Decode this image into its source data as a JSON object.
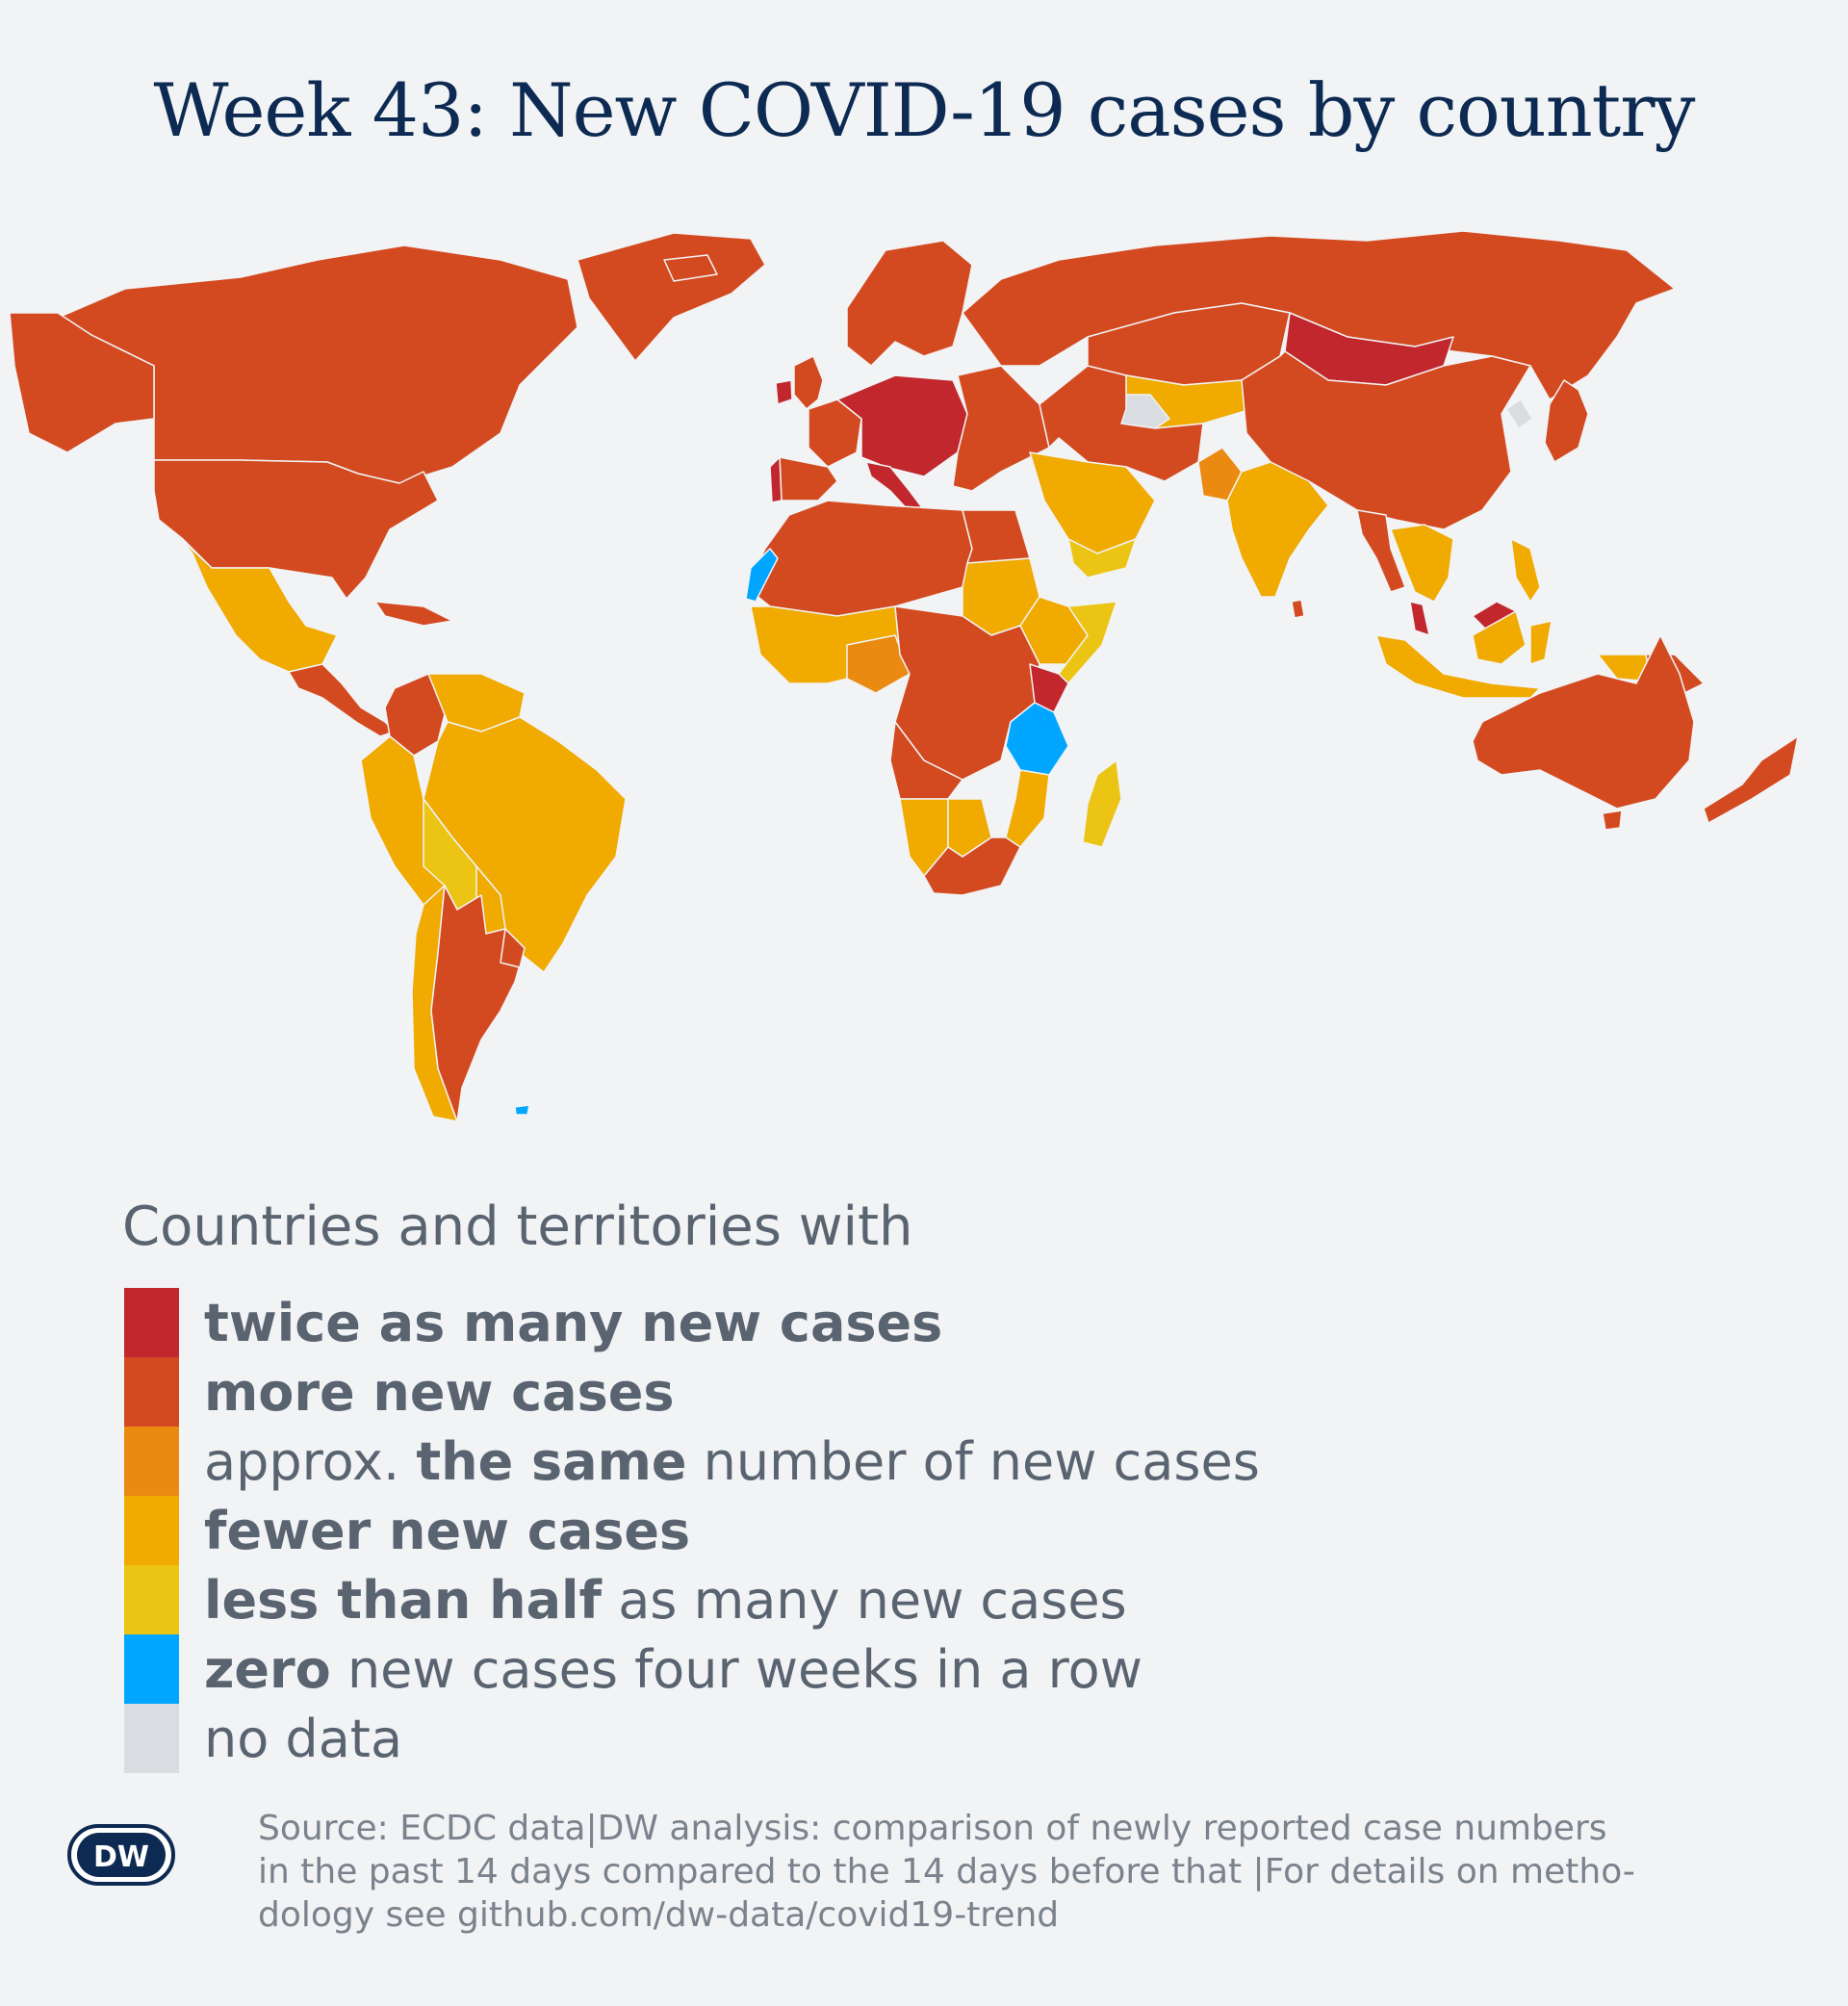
{
  "title": "Week 43: New COVID-19 cases by country",
  "legend": {
    "heading": "Countries and territories with",
    "items": [
      {
        "key": "twice",
        "color": "#c1272d",
        "bold": "twice as many new cases",
        "rest": ""
      },
      {
        "key": "more",
        "color": "#d44a20",
        "bold": "more new cases",
        "rest": ""
      },
      {
        "key": "same",
        "color": "#eb8a10",
        "pre": "approx. ",
        "bold": "the same",
        "rest": " number of new cases"
      },
      {
        "key": "fewer",
        "color": "#f0aa00",
        "bold": "fewer new cases",
        "rest": ""
      },
      {
        "key": "half",
        "color": "#ecc414",
        "bold": "less than half",
        "rest": " as many new cases"
      },
      {
        "key": "zero",
        "color": "#00a6ff",
        "bold": "zero",
        "rest": " new cases four weeks in a row"
      },
      {
        "key": "nodata",
        "color": "#d9dde1",
        "bold": "",
        "rest": "no data"
      }
    ]
  },
  "logo": {
    "text": "DW"
  },
  "source": {
    "line1": "Source: ECDC data|DW analysis: comparison of newly reported case numbers",
    "line2": "in the past 14 days compared to the 14 days before that |For details on metho-",
    "line3": "dology see github.com/dw-data/covid19-trend"
  },
  "map_regions": [
    {
      "name": "Canada",
      "category": "more"
    },
    {
      "name": "United States",
      "category": "more"
    },
    {
      "name": "Greenland",
      "category": "more"
    },
    {
      "name": "Mexico",
      "category": "fewer"
    },
    {
      "name": "Central America",
      "category": "more"
    },
    {
      "name": "Caribbean",
      "category": "more"
    },
    {
      "name": "Colombia",
      "category": "more"
    },
    {
      "name": "Venezuela",
      "category": "fewer"
    },
    {
      "name": "Ecuador",
      "category": "fewer"
    },
    {
      "name": "Peru",
      "category": "fewer"
    },
    {
      "name": "Brazil",
      "category": "fewer"
    },
    {
      "name": "Bolivia",
      "category": "half"
    },
    {
      "name": "Paraguay",
      "category": "fewer"
    },
    {
      "name": "Chile",
      "category": "fewer"
    },
    {
      "name": "Argentina",
      "category": "more"
    },
    {
      "name": "Uruguay",
      "category": "more"
    },
    {
      "name": "Falkland Islands",
      "category": "zero"
    },
    {
      "name": "Iceland",
      "category": "more"
    },
    {
      "name": "Scandinavia",
      "category": "more"
    },
    {
      "name": "United Kingdom",
      "category": "more"
    },
    {
      "name": "Ireland",
      "category": "twice"
    },
    {
      "name": "Spain",
      "category": "more"
    },
    {
      "name": "Portugal",
      "category": "twice"
    },
    {
      "name": "France",
      "category": "more"
    },
    {
      "name": "Central Europe",
      "category": "twice"
    },
    {
      "name": "Italy",
      "category": "twice"
    },
    {
      "name": "Eastern Europe",
      "category": "more"
    },
    {
      "name": "Russia",
      "category": "more"
    },
    {
      "name": "Kazakhstan",
      "category": "more"
    },
    {
      "name": "Central Asia",
      "category": "fewer"
    },
    {
      "name": "Turkmenistan",
      "category": "nodata"
    },
    {
      "name": "Mongolia",
      "category": "twice"
    },
    {
      "name": "China",
      "category": "more"
    },
    {
      "name": "North Korea",
      "category": "nodata"
    },
    {
      "name": "Japan",
      "category": "more"
    },
    {
      "name": "Iran",
      "category": "more"
    },
    {
      "name": "Saudi Arabia",
      "category": "fewer"
    },
    {
      "name": "Yemen",
      "category": "half"
    },
    {
      "name": "Pakistan",
      "category": "same"
    },
    {
      "name": "India",
      "category": "fewer"
    },
    {
      "name": "Myanmar",
      "category": "more"
    },
    {
      "name": "Southeast Asia",
      "category": "fewer"
    },
    {
      "name": "Malaysia",
      "category": "twice"
    },
    {
      "name": "Indonesia",
      "category": "fewer"
    },
    {
      "name": "Philippines",
      "category": "fewer"
    },
    {
      "name": "Papua New Guinea",
      "category": "more"
    },
    {
      "name": "Australia",
      "category": "more"
    },
    {
      "name": "New Zealand",
      "category": "more"
    },
    {
      "name": "North Africa",
      "category": "more"
    },
    {
      "name": "Western Sahara",
      "category": "zero"
    },
    {
      "name": "Egypt",
      "category": "more"
    },
    {
      "name": "Sudan",
      "category": "fewer"
    },
    {
      "name": "Ethiopia",
      "category": "fewer"
    },
    {
      "name": "Somalia",
      "category": "half"
    },
    {
      "name": "West Africa",
      "category": "fewer"
    },
    {
      "name": "Nigeria",
      "category": "same"
    },
    {
      "name": "Central Africa",
      "category": "more"
    },
    {
      "name": "Kenya",
      "category": "twice"
    },
    {
      "name": "Tanzania",
      "category": "zero"
    },
    {
      "name": "Mozambique",
      "category": "fewer"
    },
    {
      "name": "Angola",
      "category": "more"
    },
    {
      "name": "Namibia",
      "category": "fewer"
    },
    {
      "name": "Botswana",
      "category": "fewer"
    },
    {
      "name": "South Africa",
      "category": "more"
    },
    {
      "name": "Madagascar",
      "category": "half"
    }
  ]
}
